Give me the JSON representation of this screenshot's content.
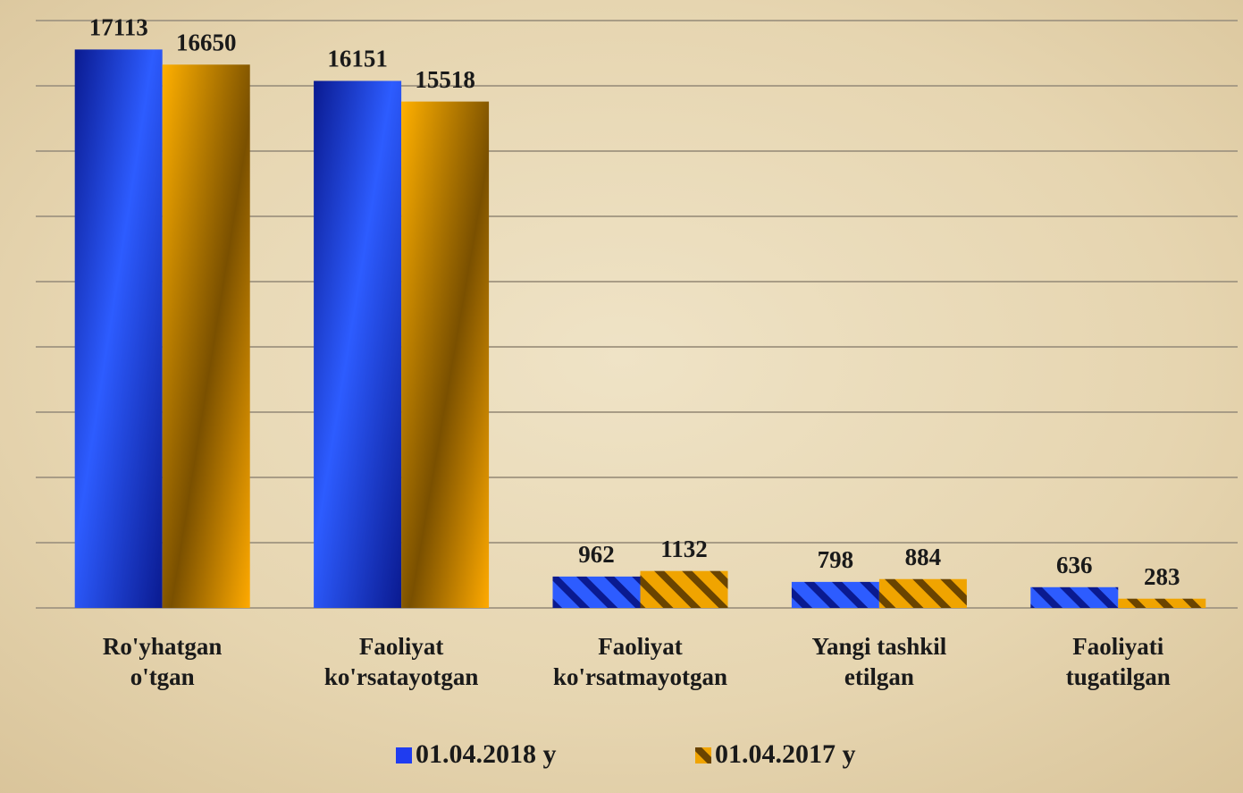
{
  "chart_data": {
    "type": "bar",
    "categories": [
      [
        "Ro'yhatgan",
        "o'tgan"
      ],
      [
        "Faoliyat",
        "ko'rsatayotgan"
      ],
      [
        "Faoliyat",
        "ko'rsatmayotgan"
      ],
      [
        "Yangi tashkil",
        "etilgan"
      ],
      [
        "Faoliyati",
        "tugatilgan"
      ]
    ],
    "series": [
      {
        "name": "01.04.2018 y",
        "color": "#1f3cf0",
        "values": [
          17113,
          16151,
          962,
          798,
          636
        ]
      },
      {
        "name": "01.04.2017 y",
        "color": "#f0a400",
        "values": [
          16650,
          15518,
          1132,
          884,
          283
        ]
      }
    ],
    "ylim": [
      0,
      18000
    ],
    "yticks": [
      0,
      2000,
      4000,
      6000,
      8000,
      10000,
      12000,
      14000,
      16000,
      18000
    ],
    "grid": true,
    "legend": "bottom"
  }
}
